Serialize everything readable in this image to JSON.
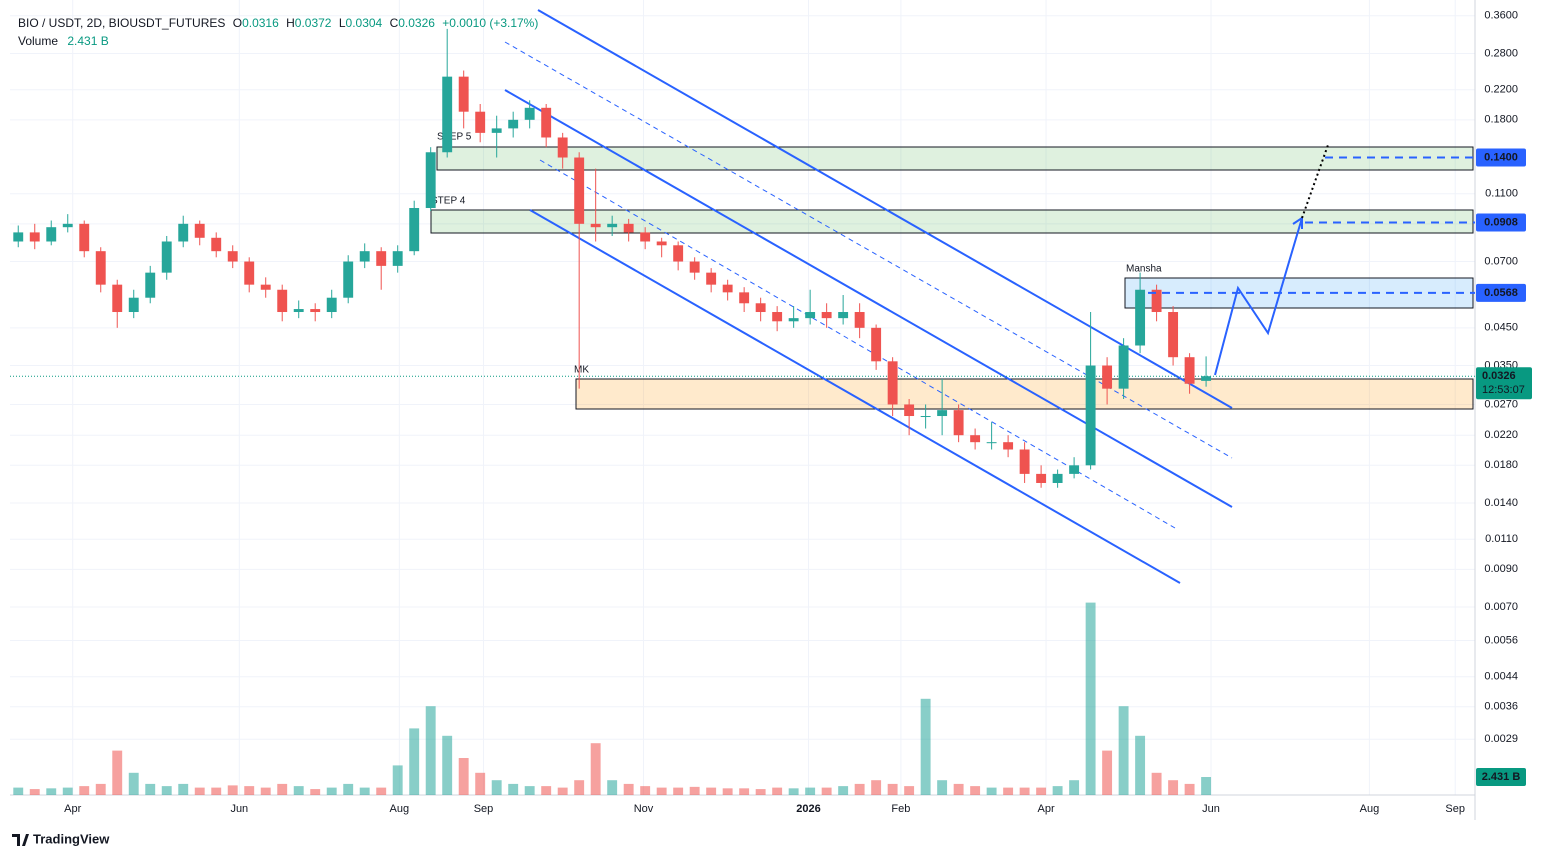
{
  "header": {
    "symbol": "BIO / USDT, 2D, BIOUSDT_FUTURES",
    "ohlc": [
      {
        "label": "O",
        "value": "0.0316"
      },
      {
        "label": "H",
        "value": "0.0372"
      },
      {
        "label": "L",
        "value": "0.0304"
      },
      {
        "label": "C",
        "value": "0.0326"
      }
    ],
    "change": "+0.0010 (+3.17%)",
    "volume_label": "Volume",
    "volume_value": "2.431 B"
  },
  "chart_data": {
    "type": "candlestick",
    "log_scale": true,
    "up_color": "#26a69a",
    "down_color": "#ef5350",
    "xlim": [
      -0.5,
      88.3
    ],
    "ylim": [
      0.002,
      0.4
    ],
    "xticks": [
      {
        "value": 3.3,
        "label": "Apr"
      },
      {
        "value": 13.4,
        "label": "Jun"
      },
      {
        "value": 23.1,
        "label": "Aug"
      },
      {
        "value": 28.2,
        "label": "Sep"
      },
      {
        "value": 37.9,
        "label": "Nov"
      },
      {
        "value": 47.9,
        "label": "2026"
      },
      {
        "value": 53.5,
        "label": "Feb"
      },
      {
        "value": 62.3,
        "label": "Apr"
      },
      {
        "value": 72.3,
        "label": "Jun"
      },
      {
        "value": 81.9,
        "label": "Aug"
      },
      {
        "value": 87.1,
        "label": "Sep"
      }
    ],
    "yticks": [
      {
        "value": 0.36,
        "label": "0.3600"
      },
      {
        "value": 0.28,
        "label": "0.2800"
      },
      {
        "value": 0.22,
        "label": "0.2200"
      },
      {
        "value": 0.18,
        "label": "0.1800"
      },
      {
        "value": 0.11,
        "label": "0.1100"
      },
      {
        "value": 0.09,
        "label": "0.0900"
      },
      {
        "value": 0.07,
        "label": "0.0700"
      },
      {
        "value": 0.045,
        "label": "0.0450"
      },
      {
        "value": 0.035,
        "label": "0.0350"
      },
      {
        "value": 0.027,
        "label": "0.0270"
      },
      {
        "value": 0.022,
        "label": "0.0220"
      },
      {
        "value": 0.018,
        "label": "0.0180"
      },
      {
        "value": 0.014,
        "label": "0.0140"
      },
      {
        "value": 0.011,
        "label": "0.0110"
      },
      {
        "value": 0.009,
        "label": "0.0090"
      },
      {
        "value": 0.007,
        "label": "0.0070"
      },
      {
        "value": 0.0056,
        "label": "0.0056"
      },
      {
        "value": 0.0044,
        "label": "0.0044"
      },
      {
        "value": 0.0036,
        "label": "0.0036"
      },
      {
        "value": 0.0029,
        "label": "0.0029"
      }
    ],
    "open": [
      0.08,
      0.085,
      0.08,
      0.088,
      0.09,
      0.075,
      0.06,
      0.05,
      0.055,
      0.065,
      0.08,
      0.09,
      0.082,
      0.075,
      0.07,
      0.06,
      0.058,
      0.05,
      0.051,
      0.05,
      0.055,
      0.07,
      0.075,
      0.068,
      0.075,
      0.1,
      0.145,
      0.24,
      0.19,
      0.165,
      0.17,
      0.18,
      0.195,
      0.16,
      0.14,
      0.09,
      0.088,
      0.09,
      0.085,
      0.08,
      0.078,
      0.07,
      0.065,
      0.06,
      0.057,
      0.053,
      0.05,
      0.047,
      0.048,
      0.05,
      0.048,
      0.05,
      0.045,
      0.036,
      0.027,
      0.025,
      0.025,
      0.026,
      0.022,
      0.021,
      0.021,
      0.02,
      0.017,
      0.016,
      0.017,
      0.018,
      0.035,
      0.03,
      0.04,
      0.058,
      0.05,
      0.037,
      0.0316
    ],
    "high": [
      0.089,
      0.09,
      0.092,
      0.096,
      0.092,
      0.077,
      0.062,
      0.058,
      0.068,
      0.083,
      0.095,
      0.092,
      0.085,
      0.078,
      0.072,
      0.063,
      0.06,
      0.054,
      0.053,
      0.058,
      0.073,
      0.079,
      0.077,
      0.078,
      0.105,
      0.15,
      0.33,
      0.25,
      0.2,
      0.185,
      0.19,
      0.205,
      0.2,
      0.165,
      0.145,
      0.13,
      0.095,
      0.093,
      0.088,
      0.082,
      0.08,
      0.072,
      0.067,
      0.062,
      0.059,
      0.055,
      0.052,
      0.052,
      0.058,
      0.053,
      0.056,
      0.053,
      0.046,
      0.037,
      0.028,
      0.027,
      0.032,
      0.027,
      0.023,
      0.024,
      0.022,
      0.021,
      0.018,
      0.0175,
      0.019,
      0.05,
      0.037,
      0.042,
      0.065,
      0.06,
      0.052,
      0.038,
      0.0372
    ],
    "low": [
      0.077,
      0.076,
      0.078,
      0.085,
      0.072,
      0.057,
      0.045,
      0.048,
      0.053,
      0.062,
      0.077,
      0.078,
      0.072,
      0.067,
      0.057,
      0.055,
      0.047,
      0.048,
      0.047,
      0.048,
      0.053,
      0.067,
      0.058,
      0.065,
      0.073,
      0.098,
      0.14,
      0.17,
      0.155,
      0.14,
      0.16,
      0.17,
      0.15,
      0.13,
      0.03,
      0.08,
      0.083,
      0.08,
      0.076,
      0.072,
      0.066,
      0.062,
      0.057,
      0.054,
      0.05,
      0.047,
      0.044,
      0.045,
      0.046,
      0.045,
      0.046,
      0.042,
      0.034,
      0.025,
      0.022,
      0.023,
      0.022,
      0.021,
      0.02,
      0.02,
      0.019,
      0.016,
      0.0155,
      0.0155,
      0.0165,
      0.0175,
      0.027,
      0.028,
      0.038,
      0.047,
      0.035,
      0.029,
      0.0304
    ],
    "close": [
      0.085,
      0.08,
      0.088,
      0.09,
      0.075,
      0.06,
      0.05,
      0.055,
      0.065,
      0.08,
      0.09,
      0.082,
      0.075,
      0.07,
      0.06,
      0.058,
      0.05,
      0.051,
      0.05,
      0.055,
      0.07,
      0.075,
      0.068,
      0.075,
      0.1,
      0.145,
      0.24,
      0.19,
      0.165,
      0.17,
      0.18,
      0.195,
      0.16,
      0.14,
      0.09,
      0.088,
      0.09,
      0.085,
      0.08,
      0.078,
      0.07,
      0.065,
      0.06,
      0.057,
      0.053,
      0.05,
      0.047,
      0.048,
      0.05,
      0.048,
      0.05,
      0.045,
      0.036,
      0.027,
      0.025,
      0.025,
      0.026,
      0.022,
      0.021,
      0.021,
      0.02,
      0.017,
      0.016,
      0.017,
      0.018,
      0.035,
      0.03,
      0.04,
      0.058,
      0.05,
      0.037,
      0.031,
      0.0326
    ],
    "volume": [
      1,
      0.8,
      0.9,
      1,
      1.2,
      1.5,
      6,
      3,
      1.5,
      1.2,
      1.5,
      1,
      1,
      1.3,
      1.2,
      1,
      1.5,
      1.2,
      0.8,
      1,
      1.5,
      1,
      1,
      4,
      9,
      12,
      8,
      5,
      3,
      2,
      1.5,
      1.2,
      1.2,
      1,
      2,
      7,
      2,
      1.5,
      1.2,
      1,
      1,
      1.1,
      1,
      0.9,
      0.9,
      0.8,
      1,
      0.9,
      1,
      1,
      1.2,
      1.5,
      2,
      1.5,
      1.2,
      13,
      2,
      1.5,
      1.2,
      1,
      1,
      1,
      1,
      1.2,
      2,
      26,
      6,
      12,
      8,
      3,
      2,
      1.5,
      2.431
    ],
    "volume_ylim": [
      0,
      30
    ],
    "volume_value_labels": {
      "72": "2.431 B"
    },
    "price_labels": [
      {
        "value": 0.14,
        "label": "0.1400"
      },
      {
        "value": 0.0908,
        "label": "0.0908"
      },
      {
        "value": 0.0568,
        "label": "0.0568"
      }
    ],
    "last_price": {
      "value": 0.0326,
      "label": "0.0326"
    },
    "countdown": "12:53:07",
    "annotations": {
      "step5": "STEP 5",
      "step4": "STEP 4",
      "mansha": "Mansha",
      "mk": "MK"
    }
  },
  "footer": {
    "brand": "TradingView"
  }
}
